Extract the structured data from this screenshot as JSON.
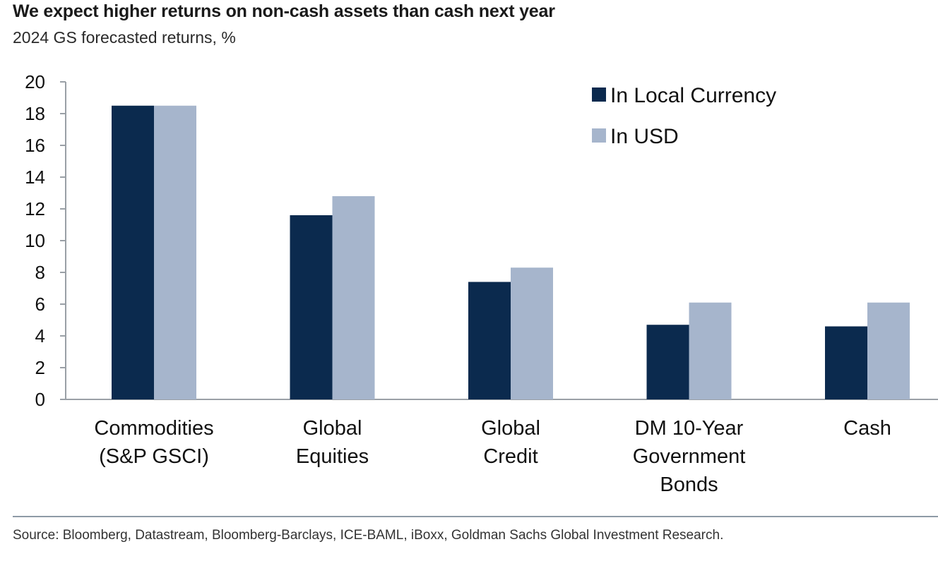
{
  "title": "We expect higher returns on non-cash assets than cash next year",
  "subtitle": "2024 GS forecasted returns, %",
  "source": "Source: Bloomberg, Datastream, Bloomberg-Barclays, ICE-BAML, iBoxx, Goldman Sachs Global Investment Research.",
  "colors": {
    "local": "#0b2a4e",
    "usd": "#a6b5cc",
    "axis": "#9aa0a6"
  },
  "chart_data": {
    "type": "bar",
    "categories": [
      [
        "Commodities",
        "(S&P GSCI)"
      ],
      [
        "Global",
        "Equities"
      ],
      [
        "Global",
        "Credit"
      ],
      [
        "DM 10-Year",
        "Government",
        "Bonds"
      ],
      [
        "Cash"
      ]
    ],
    "series": [
      {
        "name": "In Local Currency",
        "values": [
          18.5,
          11.6,
          7.4,
          4.7,
          4.6
        ]
      },
      {
        "name": "In USD",
        "values": [
          18.5,
          12.8,
          8.3,
          6.1,
          6.1
        ]
      }
    ],
    "ylim": [
      0,
      20
    ],
    "yticks": [
      0,
      2,
      4,
      6,
      8,
      10,
      12,
      14,
      16,
      18,
      20
    ],
    "xlabel": "",
    "ylabel": "",
    "legend": "top-right",
    "grid": false
  }
}
